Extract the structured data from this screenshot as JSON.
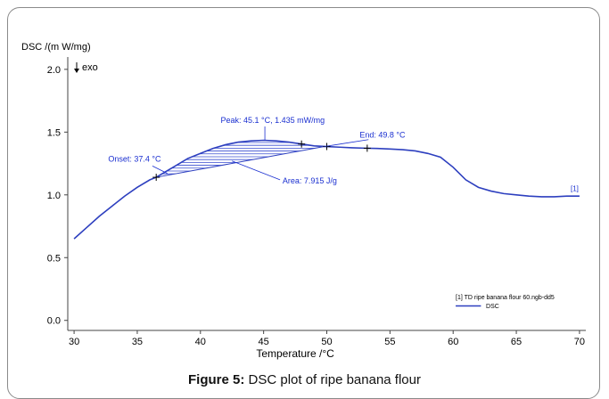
{
  "caption": {
    "prefix": "Figure 5:",
    "text": " DSC plot of ripe banana flour"
  },
  "chart_data": {
    "type": "line",
    "ylabel": "DSC  /(m W/mg)",
    "exo_label": "exo",
    "xlabel": "Temperature /°C",
    "xlim": [
      29.5,
      70.5
    ],
    "ylim": [
      -0.08,
      2.07
    ],
    "x_ticks": [
      30,
      35,
      40,
      45,
      50,
      55,
      60,
      65,
      70
    ],
    "y_ticks": [
      0.0,
      0.5,
      1.0,
      1.5,
      2.0
    ],
    "y_tick_labels": [
      "0.0",
      "0.5",
      "1.0",
      "1.5",
      "2.0"
    ],
    "grid": false,
    "series": [
      {
        "name": "DSC",
        "color": "#2d3fbf",
        "x": [
          30,
          31,
          32,
          33,
          34,
          35,
          36,
          36.5,
          37,
          38,
          39,
          40,
          41,
          42,
          43,
          44,
          45,
          46,
          47,
          48,
          49,
          50,
          51,
          52,
          53,
          54,
          55,
          56,
          57,
          58,
          59,
          60,
          61,
          62,
          63,
          64,
          65,
          66,
          67,
          68,
          69,
          70
        ],
        "y": [
          0.65,
          0.74,
          0.83,
          0.91,
          0.99,
          1.06,
          1.12,
          1.14,
          1.17,
          1.23,
          1.29,
          1.33,
          1.37,
          1.4,
          1.42,
          1.43,
          1.435,
          1.43,
          1.42,
          1.405,
          1.39,
          1.385,
          1.38,
          1.375,
          1.372,
          1.37,
          1.365,
          1.36,
          1.35,
          1.33,
          1.3,
          1.22,
          1.12,
          1.06,
          1.03,
          1.01,
          1.0,
          0.99,
          0.985,
          0.985,
          0.99,
          0.99
        ]
      }
    ],
    "series_label": "[1]",
    "baseline": {
      "x": [
        36.5,
        49.8
      ],
      "y": [
        1.14,
        1.385
      ]
    },
    "tick_marks_on_curve": [
      36.5,
      48,
      50,
      53.2
    ],
    "annotations": {
      "peak": "Peak: 45.1 °C, 1.435 mW/mg",
      "onset": "Onset: 37.4 °C",
      "end": "End: 49.8 °C",
      "area": "Area: 7.915 J/g"
    },
    "legend": {
      "file": "[1] TD ripe banana flour 60.ngb-dd5",
      "entry": "DSC",
      "placement": "bottom-right"
    }
  }
}
